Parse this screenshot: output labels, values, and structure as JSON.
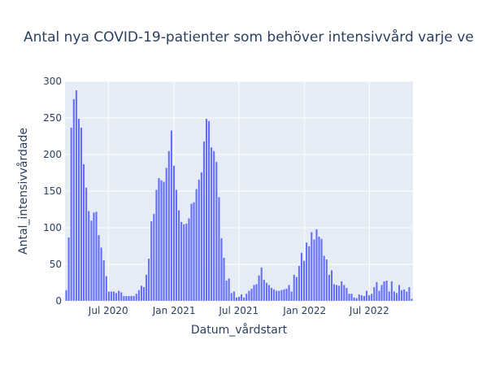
{
  "chart_data": {
    "type": "bar",
    "title": "Antal nya COVID-19-patienter som behöver intensivvård varje ve",
    "xlabel": "Datum_vårdstart",
    "ylabel": "Antal_intensivvårdade",
    "ylim": [
      0,
      300
    ],
    "yticks": [
      0,
      50,
      100,
      150,
      200,
      250,
      300
    ],
    "xticks": [
      {
        "date": "2020-07-01",
        "label": "Jul 2020"
      },
      {
        "date": "2021-01-01",
        "label": "Jan 2021"
      },
      {
        "date": "2021-07-01",
        "label": "Jul 2021"
      },
      {
        "date": "2022-01-01",
        "label": "Jan 2022"
      },
      {
        "date": "2022-07-01",
        "label": "Jul 2022"
      }
    ],
    "x_start": "2020-03-02",
    "bar_color": "#636efa",
    "background_color": "#e5ecf6",
    "grid": true,
    "values": [
      15,
      87,
      237,
      276,
      288,
      249,
      237,
      187,
      155,
      123,
      110,
      121,
      122,
      90,
      73,
      56,
      34,
      13,
      13,
      13,
      11,
      14,
      12,
      7,
      7,
      7,
      7,
      7,
      10,
      15,
      21,
      19,
      36,
      58,
      109,
      119,
      152,
      168,
      165,
      163,
      182,
      205,
      233,
      185,
      152,
      124,
      108,
      105,
      106,
      113,
      133,
      135,
      153,
      166,
      176,
      218,
      249,
      246,
      210,
      205,
      190,
      142,
      86,
      59,
      28,
      31,
      11,
      13,
      5,
      6,
      9,
      5,
      10,
      14,
      17,
      22,
      23,
      35,
      46,
      29,
      25,
      22,
      18,
      16,
      14,
      14,
      15,
      16,
      17,
      22,
      13,
      36,
      33,
      48,
      66,
      55,
      80,
      75,
      94,
      84,
      98,
      88,
      85,
      62,
      57,
      36,
      42,
      23,
      22,
      21,
      27,
      22,
      18,
      10,
      10,
      5,
      4,
      9,
      8,
      7,
      14,
      8,
      10,
      19,
      26,
      14,
      22,
      27,
      28,
      13,
      27,
      13,
      11,
      22,
      15,
      16,
      13,
      19,
      3
    ]
  }
}
